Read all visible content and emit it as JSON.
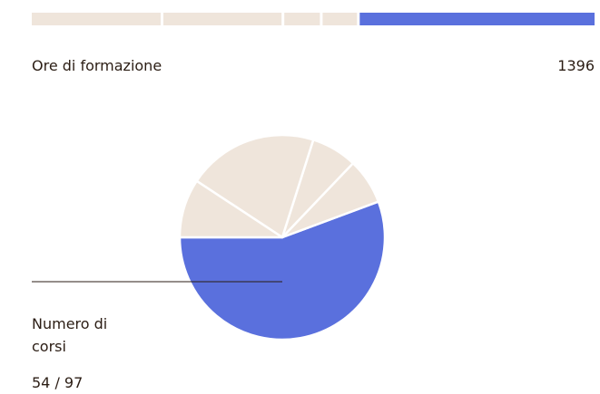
{
  "chart_data": [
    {
      "type": "stacked-bar",
      "label": "Ore di formazione",
      "total_label": "1396",
      "values": [
        326,
        299,
        90,
        87,
        594
      ],
      "colors": [
        "#efe5db",
        "#efe5db",
        "#efe5db",
        "#efe5db",
        "#5a70dd"
      ]
    },
    {
      "type": "pie",
      "label": "Numero di corsi",
      "value_label": "54 / 97",
      "values": [
        54,
        7,
        7,
        20,
        9
      ],
      "colors": [
        "#5a70dd",
        "#efe5db",
        "#efe5db",
        "#efe5db",
        "#efe5db"
      ]
    }
  ]
}
